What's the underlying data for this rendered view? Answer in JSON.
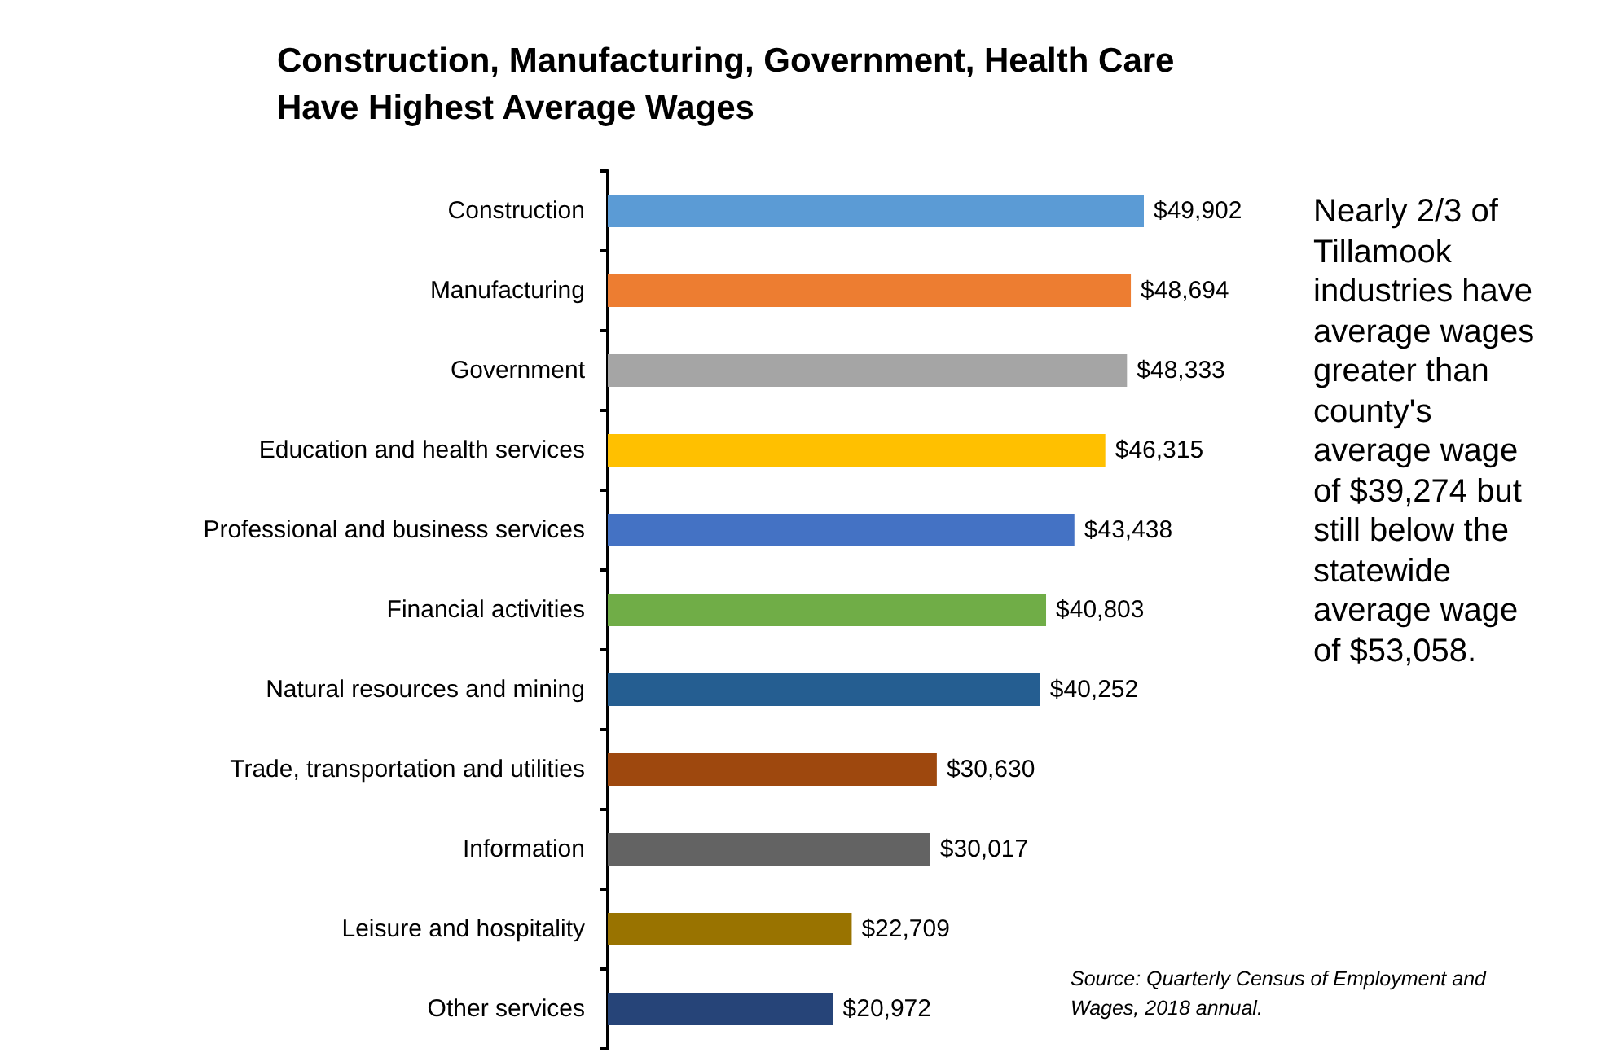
{
  "chart_data": {
    "type": "bar",
    "orientation": "horizontal",
    "title": "Construction, Manufacturing, Government, Health Care Have Highest Average Wages",
    "categories": [
      "Construction",
      "Manufacturing",
      "Government",
      "Education and health services",
      "Professional and business services",
      "Financial activities",
      "Natural resources and mining",
      "Trade, transportation and utilities",
      "Information",
      "Leisure and hospitality",
      "Other services"
    ],
    "values": [
      49902,
      48694,
      48333,
      46315,
      43438,
      40803,
      40252,
      30630,
      30017,
      22709,
      20972
    ],
    "value_labels": [
      "$49,902",
      "$48,694",
      "$48,333",
      "$46,315",
      "$43,438",
      "$40,803",
      "$40,252",
      "$30,630",
      "$30,017",
      "$22,709",
      "$20,972"
    ],
    "colors": [
      "#5b9bd5",
      "#ed7d31",
      "#a5a5a5",
      "#ffc000",
      "#4472c4",
      "#70ad47",
      "#255e91",
      "#9e480e",
      "#636363",
      "#997300",
      "#264478"
    ],
    "annotations": [
      "Nearly 2/3 of Tillamook industries have average wages greater than county's average wage of $39,274 but still below the statewide average wage of $53,058.",
      "Source: Quarterly Census of Employment and Wages, 2018 annual."
    ],
    "grid": false
  }
}
